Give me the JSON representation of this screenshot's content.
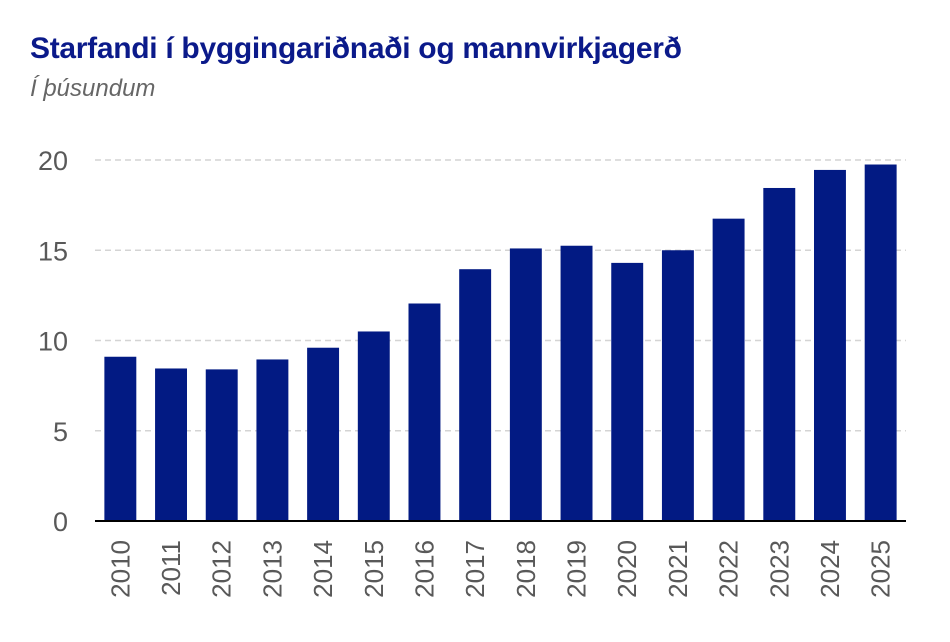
{
  "header": {
    "title": "Starfandi í byggingariðnaði og mannvirkjagerð",
    "subtitle": "Í þúsundum"
  },
  "colors": {
    "bar": "#021a83",
    "grid": "#d4d4d4",
    "axis": "#000000",
    "tick_text": "#595959"
  },
  "chart_data": {
    "type": "bar",
    "title": "Starfandi í byggingariðnaði og mannvirkjagerð",
    "subtitle": "Í þúsundum",
    "xlabel": "",
    "ylabel": "",
    "categories": [
      "2010",
      "2011",
      "2012",
      "2013",
      "2014",
      "2015",
      "2016",
      "2017",
      "2018",
      "2019",
      "2020",
      "2021",
      "2022",
      "2023",
      "2024",
      "2025"
    ],
    "values": [
      9.1,
      8.45,
      8.4,
      8.95,
      9.6,
      10.5,
      12.05,
      13.95,
      15.1,
      15.25,
      14.3,
      15.0,
      16.75,
      18.45,
      19.45,
      19.75
    ],
    "ylim": [
      0,
      20
    ],
    "yticks": [
      0,
      5,
      10,
      15,
      20
    ],
    "grid": true,
    "legend": "none"
  }
}
